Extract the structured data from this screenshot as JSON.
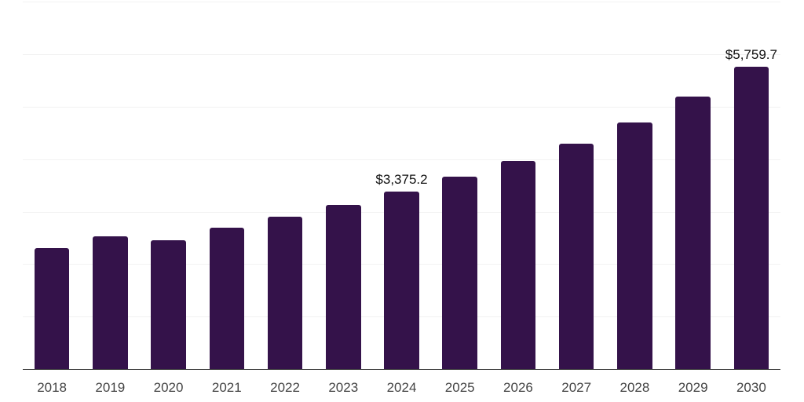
{
  "chart_data": {
    "type": "bar",
    "title": "",
    "xlabel": "",
    "ylabel": "",
    "categories": [
      "2018",
      "2019",
      "2020",
      "2021",
      "2022",
      "2023",
      "2024",
      "2025",
      "2026",
      "2027",
      "2028",
      "2029",
      "2030"
    ],
    "values": [
      2310,
      2525,
      2455,
      2690,
      2900,
      3125,
      3375.2,
      3665,
      3970,
      4300,
      4700,
      5200,
      5759.7
    ],
    "labeled_points": [
      {
        "category": "2024",
        "label": "$3,375.2"
      },
      {
        "category": "2030",
        "label": "$5,759.7"
      }
    ],
    "ylim": [
      0,
      7000
    ],
    "gridline_step": 1000,
    "grid": true,
    "legend": false,
    "bar_color": "#34124a",
    "grid_color": "#f2f2f2",
    "axis_line_color": "#333333",
    "tick_label_color": "#444444",
    "data_label_color": "#111111",
    "background_color": "#ffffff"
  }
}
